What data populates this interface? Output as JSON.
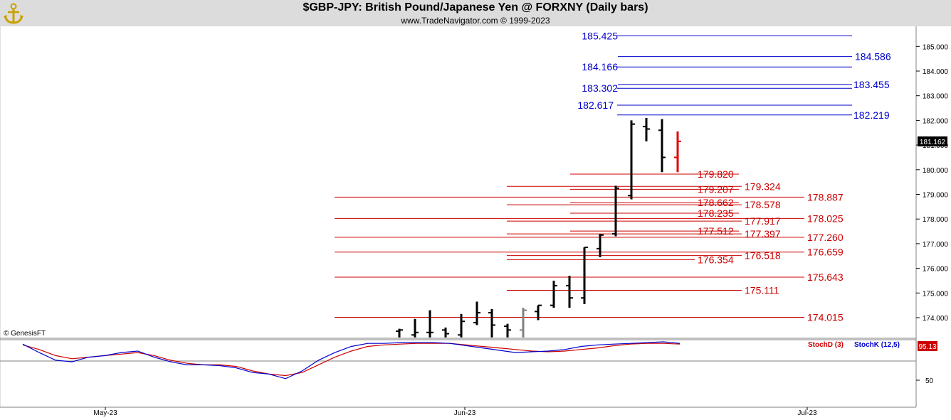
{
  "header": {
    "title": "$GBP-JPY:  British Pound/Japanese Yen @ FORXNY  (Daily bars)",
    "subtitle": "www.TradeNavigator.com © 1999-2023"
  },
  "copyright": "© GenesisFT",
  "last_price": "181.162",
  "stoch_value": "95.13",
  "colors": {
    "price_bars": "#000000",
    "last_bar": "#e00000",
    "gray_bar": "#808080",
    "resistance": "#0000cc",
    "support": "#cc0000",
    "stochD": "#cc0000",
    "stochK": "#0000cc",
    "price_box": "#000000",
    "stoch_box": "#cc0000"
  },
  "chart_data": [
    {
      "type": "ohlc",
      "name": "price",
      "x_labels": [
        "May-23",
        "Jun-23",
        "Jul-23"
      ],
      "y_ticks": [
        "174.000",
        "175.000",
        "176.000",
        "177.000",
        "178.000",
        "179.000",
        "180.000",
        "181.000",
        "182.000",
        "183.000",
        "184.000",
        "185.000"
      ],
      "ylim": [
        173.2,
        185.5
      ],
      "bars": [
        {
          "o": 173.45,
          "h": 173.55,
          "l": 173.2,
          "c": 173.5
        },
        {
          "o": 173.3,
          "h": 173.95,
          "l": 173.2,
          "c": 173.4
        },
        {
          "o": 173.4,
          "h": 174.3,
          "l": 173.2,
          "c": 173.4
        },
        {
          "o": 173.5,
          "h": 173.6,
          "l": 173.2,
          "c": 173.35
        },
        {
          "o": 173.3,
          "h": 174.15,
          "l": 173.2,
          "c": 173.85
        },
        {
          "o": 173.8,
          "h": 174.65,
          "l": 173.7,
          "c": 174.2
        },
        {
          "o": 174.2,
          "h": 174.35,
          "l": 173.2,
          "c": 173.7
        },
        {
          "o": 173.65,
          "h": 173.75,
          "l": 173.2,
          "c": 173.5
        },
        {
          "o": 173.5,
          "h": 174.4,
          "l": 173.2,
          "c": 174.3
        },
        {
          "o": 174.25,
          "h": 174.5,
          "l": 173.9,
          "c": 174.5
        },
        {
          "o": 174.5,
          "h": 175.5,
          "l": 174.4,
          "c": 175.3
        },
        {
          "o": 175.3,
          "h": 175.7,
          "l": 174.4,
          "c": 174.8
        },
        {
          "o": 174.8,
          "h": 176.85,
          "l": 174.55,
          "c": 176.85
        },
        {
          "o": 176.8,
          "h": 177.4,
          "l": 176.45,
          "c": 177.35
        },
        {
          "o": 177.4,
          "h": 179.35,
          "l": 177.3,
          "c": 179.25
        },
        {
          "o": 178.95,
          "h": 182.0,
          "l": 178.8,
          "c": 181.85
        },
        {
          "o": 181.75,
          "h": 182.1,
          "l": 181.15,
          "c": 181.65
        },
        {
          "o": 181.6,
          "h": 182.05,
          "l": 179.9,
          "c": 180.5
        },
        {
          "o": 180.5,
          "h": 181.55,
          "l": 179.9,
          "c": 181.15
        }
      ],
      "bar_colors": [
        "black",
        "black",
        "black",
        "black",
        "black",
        "black",
        "black",
        "black",
        "gray",
        "black",
        "black",
        "black",
        "black",
        "black",
        "black",
        "black",
        "black",
        "black",
        "red"
      ],
      "levels": [
        {
          "value": "185.425",
          "color": "blue"
        },
        {
          "value": "184.586",
          "color": "blue"
        },
        {
          "value": "184.166",
          "color": "blue"
        },
        {
          "value": "183.455",
          "color": "blue"
        },
        {
          "value": "183.302",
          "color": "blue"
        },
        {
          "value": "182.617",
          "color": "blue"
        },
        {
          "value": "182.219",
          "color": "blue"
        },
        {
          "value": "179.820",
          "color": "red"
        },
        {
          "value": "179.324",
          "color": "red"
        },
        {
          "value": "179.207",
          "color": "red"
        },
        {
          "value": "178.887",
          "color": "red"
        },
        {
          "value": "178.662",
          "color": "red"
        },
        {
          "value": "178.578",
          "color": "red"
        },
        {
          "value": "178.235",
          "color": "red"
        },
        {
          "value": "178.025",
          "color": "red"
        },
        {
          "value": "177.917",
          "color": "red"
        },
        {
          "value": "177.512",
          "color": "red"
        },
        {
          "value": "177.397",
          "color": "red"
        },
        {
          "value": "177.260",
          "color": "red"
        },
        {
          "value": "176.659",
          "color": "red"
        },
        {
          "value": "176.518",
          "color": "red"
        },
        {
          "value": "176.354",
          "color": "red"
        },
        {
          "value": "175.643",
          "color": "red"
        },
        {
          "value": "175.111",
          "color": "red"
        },
        {
          "value": "174.015",
          "color": "red"
        }
      ]
    },
    {
      "type": "line",
      "name": "stochastic",
      "y_ticks": [
        "50"
      ],
      "ylim": [
        0,
        100
      ],
      "legend": [
        "StochD (3)",
        "StochK (12,5)"
      ],
      "series": [
        {
          "name": "StochD (3)",
          "values": [
            96,
            90,
            82,
            78,
            80,
            82,
            84,
            86,
            82,
            76,
            72,
            70,
            70,
            68,
            62,
            58,
            56,
            60,
            70,
            80,
            88,
            94,
            96,
            97,
            98,
            98,
            98,
            96,
            94,
            92,
            90,
            88,
            87,
            88,
            90,
            92,
            95,
            97,
            98,
            98,
            97
          ]
        },
        {
          "name": "StochK (12,5)",
          "values": [
            97,
            86,
            76,
            74,
            80,
            82,
            86,
            88,
            80,
            74,
            70,
            70,
            69,
            66,
            60,
            58,
            52,
            62,
            76,
            86,
            94,
            98,
            98,
            99,
            99,
            99,
            98,
            95,
            92,
            89,
            86,
            87,
            88,
            90,
            94,
            96,
            97,
            98,
            99,
            100,
            98
          ]
        }
      ]
    }
  ]
}
